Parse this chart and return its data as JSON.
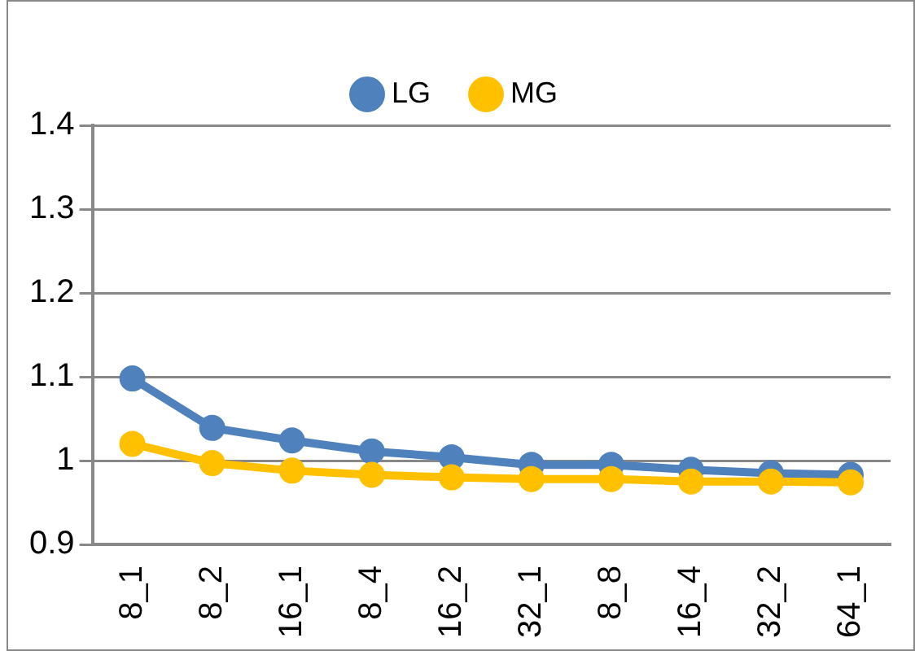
{
  "chart_data": {
    "type": "line",
    "categories": [
      "8_1",
      "8_2",
      "16_1",
      "8_4",
      "16_2",
      "32_1",
      "8_8",
      "16_4",
      "32_2",
      "64_1"
    ],
    "series": [
      {
        "name": "LG",
        "color": "#4f81bd",
        "values": [
          1.098,
          1.039,
          1.024,
          1.011,
          1.004,
          0.995,
          0.995,
          0.989,
          0.985,
          0.983
        ]
      },
      {
        "name": "MG",
        "color": "#ffc000",
        "values": [
          1.02,
          0.997,
          0.988,
          0.983,
          0.98,
          0.978,
          0.978,
          0.975,
          0.975,
          0.974
        ]
      }
    ],
    "ylim": [
      0.9,
      1.4
    ],
    "yticks": [
      0.9,
      1,
      1.1,
      1.2,
      1.3,
      1.4
    ],
    "grid": "y",
    "legend": "top",
    "marker": "circle",
    "line_style": "solid"
  }
}
